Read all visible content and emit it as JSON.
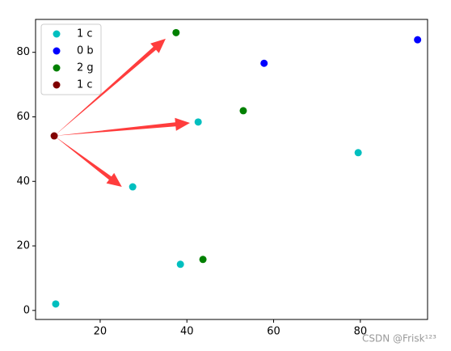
{
  "chart_data": {
    "type": "scatter",
    "series": [
      {
        "name": "1 c",
        "color": "#00bfbf",
        "x": [
          9.75,
          27.5,
          38.5,
          42.6,
          79.5
        ],
        "y": [
          2.0,
          38.3,
          14.3,
          58.4,
          48.9
        ]
      },
      {
        "name": "0 b",
        "color": "#0000ff",
        "x": [
          57.8,
          93.2
        ],
        "y": [
          76.6,
          83.9
        ]
      },
      {
        "name": "2 g",
        "color": "#008000",
        "x": [
          37.5,
          53.0,
          43.7
        ],
        "y": [
          86.1,
          61.9,
          15.8
        ]
      },
      {
        "name": "1 c",
        "color": "#800000",
        "x": [
          9.4
        ],
        "y": [
          54.1
        ]
      }
    ],
    "annotations": [
      {
        "xy": [
          35.1,
          84.2
        ],
        "xytext": [
          9.4,
          54.1
        ],
        "color": "#ff3333"
      },
      {
        "xy": [
          40.7,
          58.1
        ],
        "xytext": [
          9.4,
          54.1
        ],
        "color": "#ff3333"
      },
      {
        "xy": [
          25.0,
          38.3
        ],
        "xytext": [
          9.4,
          54.1
        ],
        "color": "#ff3333"
      }
    ],
    "xlim": [
      5.1,
      95.5
    ],
    "ylim": [
      -2.8,
      90.2
    ],
    "xticks": [
      20,
      40,
      60,
      80
    ],
    "yticks": [
      0,
      20,
      40,
      60,
      80
    ],
    "legend": "upper left",
    "watermark": "CSDN @Frisk¹²³"
  }
}
